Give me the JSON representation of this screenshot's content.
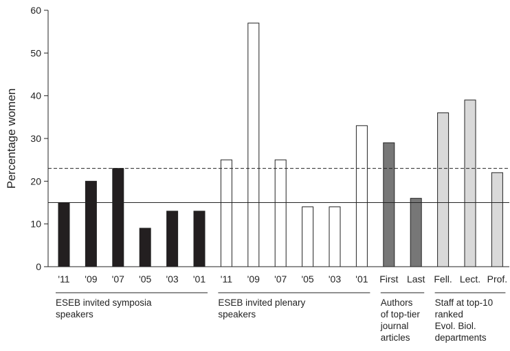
{
  "chart_data": {
    "type": "bar",
    "ylabel": "Percentage women",
    "ylim": [
      0,
      60
    ],
    "yticks": [
      0,
      10,
      20,
      30,
      40,
      50,
      60
    ],
    "grid": false,
    "reference_lines": [
      {
        "value": 15,
        "style": "solid"
      },
      {
        "value": 23,
        "style": "dashed"
      }
    ],
    "groups": [
      {
        "label": "ESEB invited symposia speakers",
        "label_lines": [
          "ESEB invited symposia",
          "speakers"
        ],
        "color": "#231f20",
        "categories": [
          "'11",
          "'09",
          "'07",
          "'05",
          "'03",
          "'01"
        ],
        "values": [
          15,
          20,
          23,
          9,
          13,
          13
        ]
      },
      {
        "label": "ESEB invited plenary speakers",
        "label_lines": [
          "ESEB invited plenary",
          "speakers"
        ],
        "color": "#ffffff",
        "categories": [
          "'11",
          "'09",
          "'07",
          "'05",
          "'03",
          "'01"
        ],
        "values": [
          25,
          57,
          25,
          14,
          14,
          33
        ]
      },
      {
        "label": "Authors of top-tier journal articles",
        "label_lines": [
          "Authors",
          "of top-tier",
          "journal",
          "articles"
        ],
        "color": "#777777",
        "categories": [
          "First",
          "Last"
        ],
        "values": [
          29,
          16
        ]
      },
      {
        "label": "Staff at top-10 ranked Evol. Biol. departments",
        "label_lines": [
          "Staff at top-10",
          "ranked",
          "Evol. Biol.",
          "departments"
        ],
        "color": "#d9d9d9",
        "categories": [
          "Fell.",
          "Lect.",
          "Prof."
        ],
        "values": [
          36,
          39,
          22
        ]
      }
    ]
  }
}
